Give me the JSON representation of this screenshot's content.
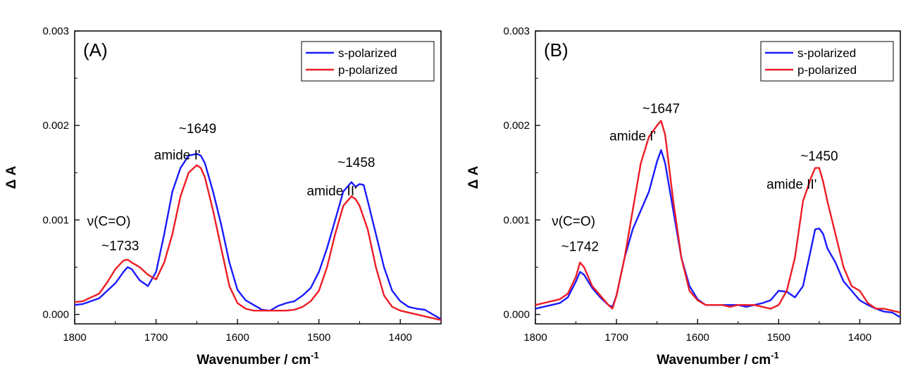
{
  "chart_data": [
    {
      "type": "line",
      "panel_label": "(A)",
      "xlabel": "Wavenumber / cm",
      "xlabel_sup": "-1",
      "ylabel": "Δ A",
      "xlim": [
        1800,
        1350
      ],
      "ylim": [
        -0.0001,
        0.003
      ],
      "x_ticks": [
        1800,
        1700,
        1600,
        1500,
        1400
      ],
      "x_tick_labels": [
        "1800",
        "1700",
        "1600",
        "1500",
        "1400"
      ],
      "y_ticks": [
        0.0,
        0.001,
        0.002,
        0.003
      ],
      "y_tick_labels": [
        "0.000",
        "0.001",
        "0.002",
        "0.003"
      ],
      "legend_position": "top-right",
      "series": [
        {
          "name": "s-polarized",
          "color": "#1a1aff",
          "x": [
            1800,
            1790,
            1780,
            1770,
            1760,
            1750,
            1740,
            1735,
            1730,
            1720,
            1710,
            1700,
            1690,
            1680,
            1670,
            1660,
            1650,
            1645,
            1640,
            1630,
            1620,
            1610,
            1600,
            1590,
            1580,
            1570,
            1560,
            1550,
            1540,
            1530,
            1520,
            1510,
            1500,
            1490,
            1480,
            1470,
            1460,
            1455,
            1450,
            1445,
            1440,
            1430,
            1420,
            1410,
            1400,
            1390,
            1380,
            1370,
            1360,
            1350
          ],
          "y": [
            0.0001,
            0.00011,
            0.00014,
            0.00017,
            0.00025,
            0.00033,
            0.00045,
            0.0005,
            0.00048,
            0.00036,
            0.0003,
            0.00045,
            0.00085,
            0.0013,
            0.00155,
            0.00168,
            0.0017,
            0.00168,
            0.0016,
            0.0013,
            0.00095,
            0.00055,
            0.00026,
            0.00015,
            0.0001,
            5e-05,
            4e-05,
            9e-05,
            0.00012,
            0.00014,
            0.0002,
            0.00028,
            0.00045,
            0.0007,
            0.001,
            0.0013,
            0.0014,
            0.00135,
            0.00138,
            0.00137,
            0.0012,
            0.00085,
            0.0005,
            0.00025,
            0.00014,
            8e-05,
            6e-05,
            5e-05,
            0.0,
            -5e-05
          ]
        },
        {
          "name": "p-polarized",
          "color": "#ee1c25",
          "x": [
            1800,
            1790,
            1780,
            1770,
            1760,
            1750,
            1740,
            1735,
            1730,
            1720,
            1710,
            1700,
            1690,
            1680,
            1670,
            1660,
            1650,
            1645,
            1640,
            1630,
            1620,
            1610,
            1600,
            1590,
            1580,
            1570,
            1560,
            1550,
            1540,
            1530,
            1520,
            1510,
            1500,
            1490,
            1480,
            1470,
            1460,
            1455,
            1450,
            1440,
            1430,
            1420,
            1410,
            1400,
            1390,
            1380,
            1370,
            1360,
            1350
          ],
          "y": [
            0.00013,
            0.00014,
            0.00018,
            0.00022,
            0.00034,
            0.00048,
            0.00057,
            0.00058,
            0.00055,
            0.0005,
            0.00042,
            0.00037,
            0.00055,
            0.00085,
            0.00125,
            0.0015,
            0.00158,
            0.00155,
            0.00145,
            0.0011,
            0.0007,
            0.0003,
            0.00012,
            6e-05,
            4e-05,
            4e-05,
            4e-05,
            4e-05,
            4e-05,
            5e-05,
            8e-05,
            0.00014,
            0.00025,
            0.0005,
            0.00085,
            0.00115,
            0.00125,
            0.00122,
            0.00115,
            0.0009,
            0.0005,
            0.0002,
            8e-05,
            4e-05,
            2e-05,
            0.0,
            -2e-05,
            -4e-05,
            -6e-05
          ]
        }
      ],
      "annotations": [
        {
          "text": "~1649",
          "x": 1649,
          "y": 0.00192
        },
        {
          "text": "amide I'",
          "x": 1674,
          "y": 0.00164
        },
        {
          "text": "~1458",
          "x": 1454,
          "y": 0.00156
        },
        {
          "text": "amide II'",
          "x": 1484,
          "y": 0.00126
        },
        {
          "text": "ν(C=O)",
          "x": 1758,
          "y": 0.00094
        },
        {
          "text": "~1733",
          "x": 1744,
          "y": 0.00068
        }
      ]
    },
    {
      "type": "line",
      "panel_label": "(B)",
      "xlabel": "Wavenumber / cm",
      "xlabel_sup": "-1",
      "ylabel": "Δ A",
      "xlim": [
        1800,
        1350
      ],
      "ylim": [
        -0.0001,
        0.003
      ],
      "x_ticks": [
        1800,
        1700,
        1600,
        1500,
        1400
      ],
      "x_tick_labels": [
        "1800",
        "1700",
        "1600",
        "1500",
        "1400"
      ],
      "y_ticks": [
        0.0,
        0.001,
        0.002,
        0.003
      ],
      "y_tick_labels": [
        "0.000",
        "0.001",
        "0.002",
        "0.003"
      ],
      "legend_position": "top-right",
      "series": [
        {
          "name": "s-polarized",
          "color": "#1a1aff",
          "x": [
            1800,
            1790,
            1780,
            1770,
            1760,
            1750,
            1745,
            1740,
            1735,
            1730,
            1720,
            1710,
            1705,
            1700,
            1690,
            1680,
            1670,
            1660,
            1650,
            1645,
            1640,
            1630,
            1620,
            1610,
            1600,
            1590,
            1580,
            1570,
            1560,
            1550,
            1540,
            1530,
            1520,
            1510,
            1500,
            1490,
            1480,
            1470,
            1460,
            1455,
            1450,
            1445,
            1440,
            1430,
            1420,
            1410,
            1400,
            1390,
            1380,
            1370,
            1360,
            1350
          ],
          "y": [
            6e-05,
            8e-05,
            0.0001,
            0.00012,
            0.00018,
            0.00035,
            0.00045,
            0.00042,
            0.00035,
            0.00028,
            0.00018,
            0.0001,
            8e-05,
            0.0002,
            0.0006,
            0.0009,
            0.0011,
            0.0013,
            0.00162,
            0.00174,
            0.0016,
            0.0011,
            0.0006,
            0.0003,
            0.00016,
            0.0001,
            0.0001,
            0.0001,
            0.0001,
            0.0001,
            8e-05,
            0.0001,
            0.00012,
            0.00015,
            0.00025,
            0.00024,
            0.00018,
            0.0003,
            0.0007,
            0.0009,
            0.00091,
            0.00085,
            0.0007,
            0.00055,
            0.00035,
            0.00025,
            0.00015,
            0.0001,
            6e-05,
            3e-05,
            2e-05,
            -3e-05
          ]
        },
        {
          "name": "p-polarized",
          "color": "#ee1c25",
          "x": [
            1800,
            1790,
            1780,
            1770,
            1760,
            1750,
            1745,
            1740,
            1735,
            1730,
            1720,
            1710,
            1705,
            1700,
            1690,
            1680,
            1670,
            1660,
            1650,
            1645,
            1640,
            1630,
            1620,
            1610,
            1600,
            1590,
            1580,
            1570,
            1560,
            1550,
            1540,
            1530,
            1520,
            1510,
            1500,
            1490,
            1480,
            1470,
            1460,
            1455,
            1450,
            1445,
            1440,
            1430,
            1420,
            1410,
            1400,
            1390,
            1380,
            1370,
            1360,
            1350
          ],
          "y": [
            0.0001,
            0.00012,
            0.00014,
            0.00016,
            0.00022,
            0.0004,
            0.00055,
            0.0005,
            0.0004,
            0.0003,
            0.0002,
            0.0001,
            6e-05,
            0.0002,
            0.0006,
            0.0011,
            0.0016,
            0.00188,
            0.002,
            0.00205,
            0.0019,
            0.0012,
            0.0006,
            0.00025,
            0.00015,
            0.0001,
            0.0001,
            0.0001,
            8e-05,
            0.0001,
            0.0001,
            0.0001,
            8e-05,
            6e-05,
            0.0001,
            0.00025,
            0.0006,
            0.0012,
            0.00145,
            0.00155,
            0.00155,
            0.0014,
            0.0012,
            0.00085,
            0.0005,
            0.0003,
            0.00025,
            0.00012,
            6e-05,
            6e-05,
            4e-05,
            2e-05
          ]
        }
      ],
      "annotations": [
        {
          "text": "~1647",
          "x": 1645,
          "y": 0.00213
        },
        {
          "text": "amide I'",
          "x": 1680,
          "y": 0.00184
        },
        {
          "text": "~1450",
          "x": 1450,
          "y": 0.00163
        },
        {
          "text": "amide II'",
          "x": 1484,
          "y": 0.00133
        },
        {
          "text": "ν(C=O)",
          "x": 1753,
          "y": 0.00094
        },
        {
          "text": "~1742",
          "x": 1745,
          "y": 0.00067
        }
      ]
    }
  ]
}
